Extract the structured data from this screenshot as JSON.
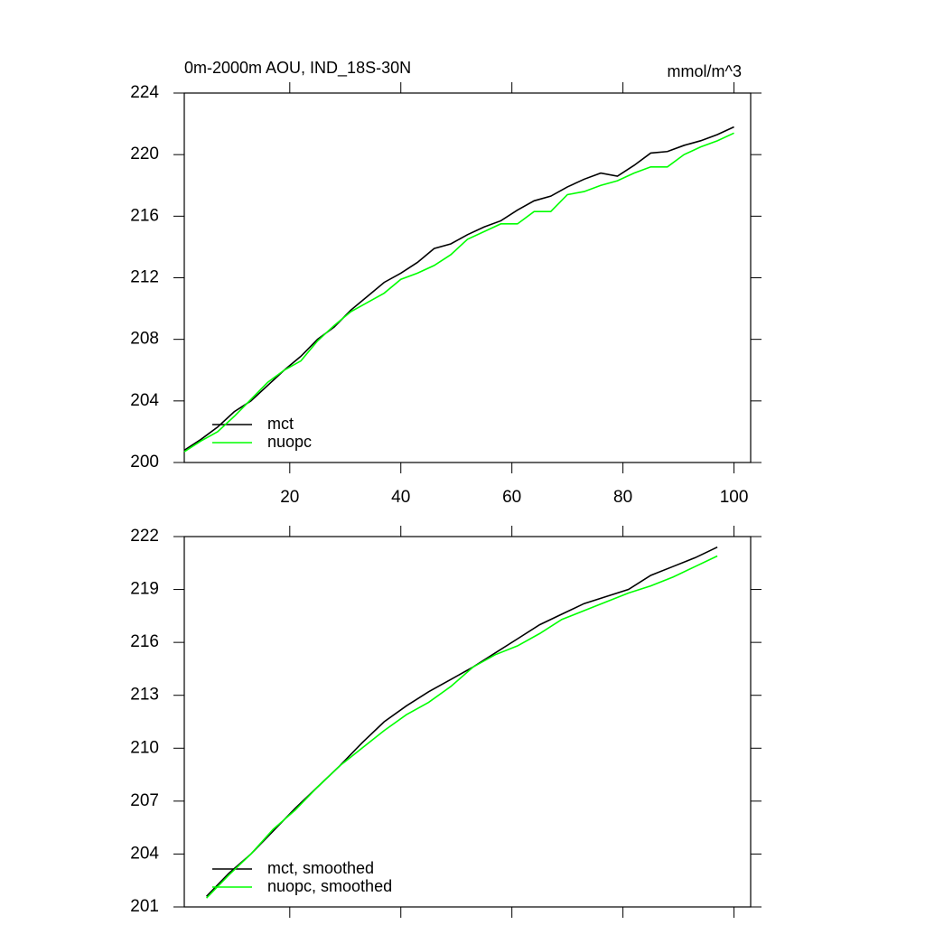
{
  "chart_data": [
    {
      "type": "line",
      "title": "0m-2000m AOU, IND_18S-30N",
      "units": "mmol/m^3",
      "x": [
        1,
        4,
        7,
        10,
        13,
        16,
        19,
        22,
        25,
        28,
        31,
        34,
        37,
        40,
        43,
        46,
        49,
        52,
        55,
        58,
        61,
        64,
        67,
        70,
        73,
        76,
        79,
        82,
        85,
        88,
        91,
        94,
        97,
        100
      ],
      "series": [
        {
          "name": "mct",
          "color": "#000000",
          "values": [
            200.8,
            201.5,
            202.3,
            203.3,
            204.0,
            205.0,
            206.0,
            206.9,
            208.0,
            208.8,
            209.9,
            210.8,
            211.7,
            212.3,
            213.0,
            213.9,
            214.2,
            214.8,
            215.3,
            215.7,
            216.4,
            217.0,
            217.3,
            217.9,
            218.4,
            218.8,
            218.6,
            219.3,
            220.1,
            220.2,
            220.6,
            220.9,
            221.3,
            221.8
          ]
        },
        {
          "name": "nuopc",
          "color": "#00ff00",
          "values": [
            200.7,
            201.4,
            202.0,
            203.0,
            204.1,
            205.2,
            206.0,
            206.6,
            207.9,
            208.9,
            209.8,
            210.4,
            211.0,
            211.9,
            212.3,
            212.8,
            213.5,
            214.5,
            215.0,
            215.5,
            215.5,
            216.3,
            216.3,
            217.4,
            217.6,
            218.0,
            218.3,
            218.8,
            219.2,
            219.2,
            220.0,
            220.5,
            220.9,
            221.4
          ]
        }
      ],
      "xlim": [
        1,
        103
      ],
      "xticks": [
        20,
        40,
        60,
        80,
        100
      ],
      "xtick_labels": true,
      "ylim": [
        200,
        224
      ],
      "yticks": [
        200,
        204,
        208,
        212,
        216,
        220,
        224
      ],
      "legend": "lower left"
    },
    {
      "type": "line",
      "x": [
        5,
        9,
        13,
        17,
        21,
        25,
        29,
        33,
        37,
        41,
        45,
        49,
        53,
        57,
        61,
        65,
        69,
        73,
        77,
        81,
        85,
        89,
        93,
        97
      ],
      "series": [
        {
          "name": "mct, smoothed",
          "color": "#000000",
          "values": [
            201.6,
            202.9,
            204.0,
            205.3,
            206.6,
            207.8,
            209.0,
            210.3,
            211.5,
            212.4,
            213.2,
            213.9,
            214.6,
            215.4,
            216.2,
            217.0,
            217.6,
            218.2,
            218.6,
            219.0,
            219.8,
            220.3,
            220.8,
            221.4
          ]
        },
        {
          "name": "nuopc, smoothed",
          "color": "#00ff00",
          "values": [
            201.5,
            202.8,
            204.0,
            205.4,
            206.5,
            207.8,
            209.0,
            210.0,
            211.0,
            211.9,
            212.6,
            213.5,
            214.6,
            215.3,
            215.8,
            216.5,
            217.3,
            217.8,
            218.3,
            218.8,
            219.2,
            219.7,
            220.3,
            220.9
          ]
        }
      ],
      "xlim": [
        1,
        103
      ],
      "xticks": [
        20,
        40,
        60,
        80,
        100
      ],
      "xtick_labels": false,
      "ylim": [
        201,
        222
      ],
      "yticks": [
        201,
        204,
        207,
        210,
        213,
        216,
        219,
        222
      ],
      "legend": "lower left"
    }
  ]
}
